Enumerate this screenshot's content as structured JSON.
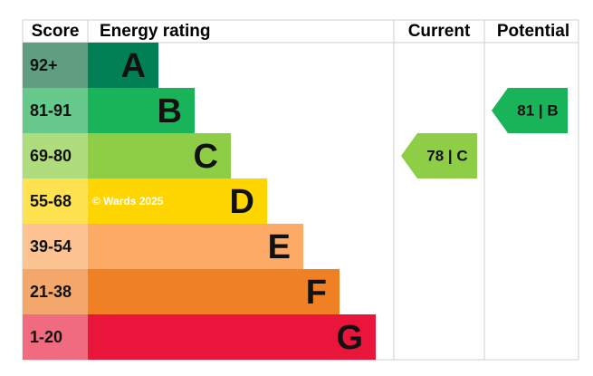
{
  "header": {
    "score": "Score",
    "rating": "Energy rating",
    "current": "Current",
    "potential": "Potential"
  },
  "bands": [
    {
      "score": "92+",
      "letter": "A",
      "color": "#008054",
      "light": "#5f9f80"
    },
    {
      "score": "81-91",
      "letter": "B",
      "color": "#19b459",
      "light": "#66c98b"
    },
    {
      "score": "69-80",
      "letter": "C",
      "color": "#8dce46",
      "light": "#afdd7d"
    },
    {
      "score": "55-68",
      "letter": "D",
      "color": "#ffd500",
      "light": "#ffe24f"
    },
    {
      "score": "39-54",
      "letter": "E",
      "color": "#fcaa65",
      "light": "#fdc393"
    },
    {
      "score": "21-38",
      "letter": "F",
      "color": "#ef8023",
      "light": "#f4a76a"
    },
    {
      "score": "1-20",
      "letter": "G",
      "color": "#e9153b",
      "light": "#f06b80"
    }
  ],
  "watermark": "© Wards 2025",
  "current": "78 | C",
  "potential": "81 | B"
}
